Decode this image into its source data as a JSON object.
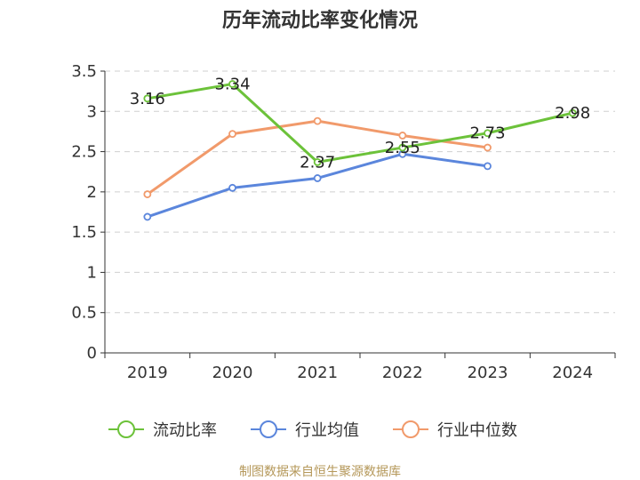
{
  "chart_data": {
    "type": "line",
    "title": "历年流动比率变化情况",
    "categories": [
      "2019",
      "2020",
      "2021",
      "2022",
      "2023",
      "2024"
    ],
    "ylim": [
      0,
      3.5
    ],
    "yticks": [
      0,
      0.5,
      1,
      1.5,
      2,
      2.5,
      3,
      3.5
    ],
    "ytick_labels": [
      "0",
      "0.5",
      "1",
      "1.5",
      "2",
      "2.5",
      "3",
      "3.5"
    ],
    "grid": true,
    "legend_position": "bottom",
    "series": [
      {
        "name": "流动比率",
        "color": "#6cc23a",
        "values": [
          3.16,
          3.34,
          2.37,
          2.55,
          2.73,
          2.98
        ],
        "labels": [
          "3.16",
          "3.34",
          "2.37",
          "2.55",
          "2.73",
          "2.98"
        ]
      },
      {
        "name": "行业均值",
        "color": "#5b86dc",
        "values": [
          1.69,
          2.05,
          2.17,
          2.47,
          2.32,
          null
        ]
      },
      {
        "name": "行业中位数",
        "color": "#f19a6b",
        "values": [
          1.97,
          2.72,
          2.88,
          2.7,
          2.55,
          null
        ]
      }
    ]
  },
  "footer": {
    "source": "制图数据来自恒生聚源数据库"
  }
}
